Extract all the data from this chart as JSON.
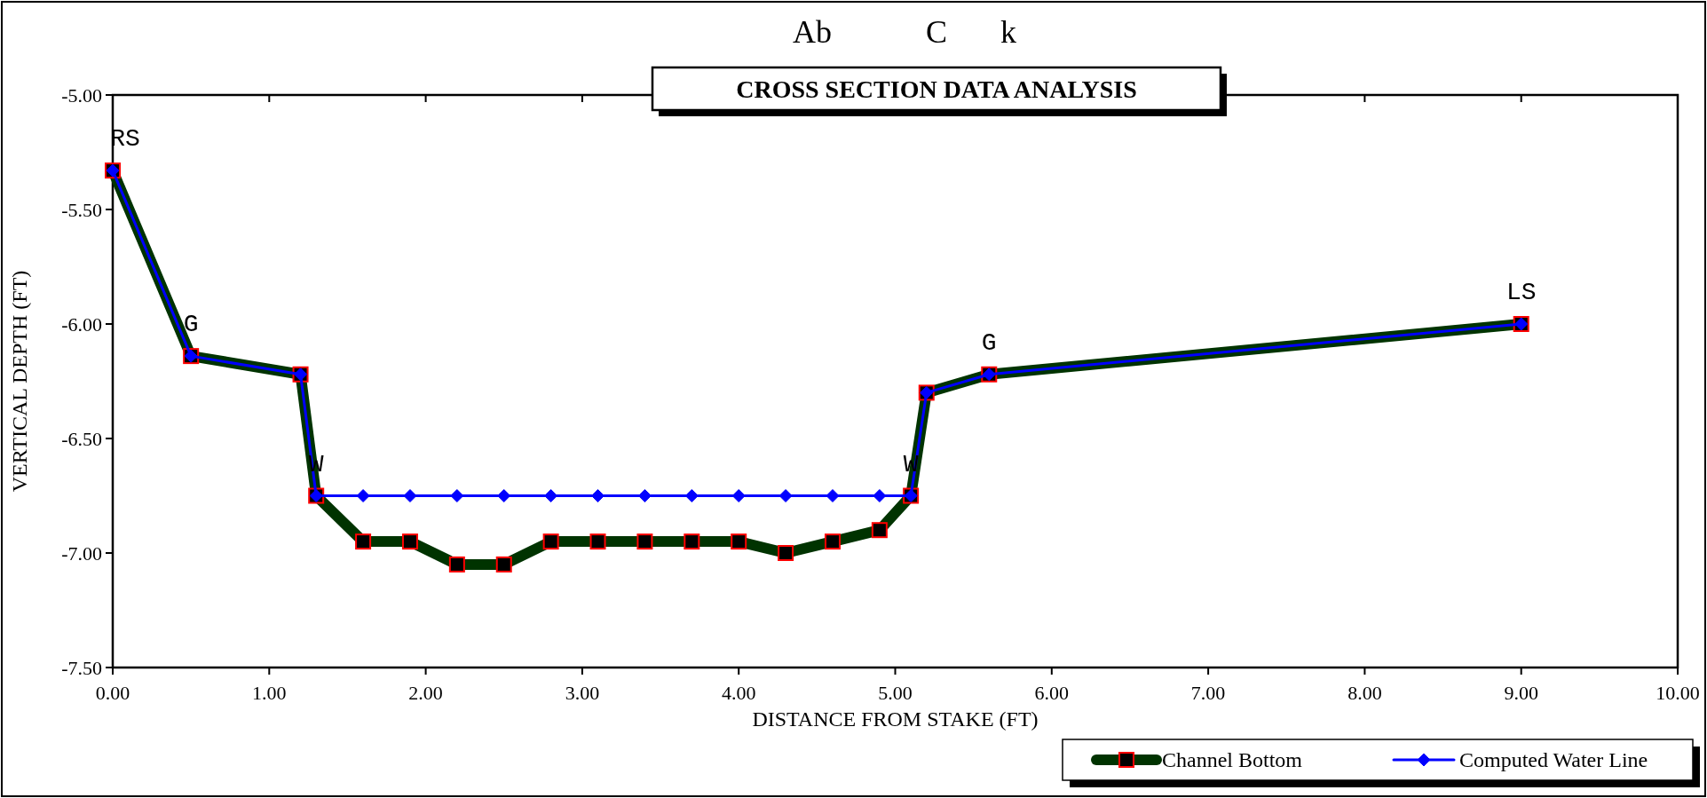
{
  "chart_data": {
    "type": "line",
    "title": "CROSS SECTION DATA ANALYSIS",
    "xlabel": "DISTANCE FROM STAKE (FT)",
    "ylabel": "VERTICAL DEPTH (FT)",
    "annotations": [
      "Ab",
      "C",
      "k",
      {
        "text": "RS",
        "x": 0,
        "y": -5.33
      },
      {
        "text": "G",
        "x": 0.5,
        "y": -6.14
      },
      {
        "text": "W",
        "x": 1.3,
        "y": -6.75
      },
      {
        "text": "W",
        "x": 5.1,
        "y": -6.75
      },
      {
        "text": "G",
        "x": 5.6,
        "y": -6.22
      },
      {
        "text": "LS",
        "x": 9.0,
        "y": -6.0
      }
    ],
    "x": [
      0,
      0.5,
      1.2,
      1.3,
      1.6,
      1.9,
      2.2,
      2.5,
      2.8,
      3.1,
      3.4,
      3.7,
      4.0,
      4.3,
      4.6,
      4.9,
      5.1,
      5.2,
      5.6,
      9.0
    ],
    "series": [
      {
        "name": "Channel Bottom",
        "color": "#003300",
        "marker": "square",
        "values": [
          -5.33,
          -6.14,
          -6.22,
          -6.75,
          -6.95,
          -6.95,
          -7.05,
          -7.05,
          -6.95,
          -6.95,
          -6.95,
          -6.95,
          -6.95,
          -7.0,
          -6.95,
          -6.9,
          -6.75,
          -6.3,
          -6.22,
          -6.0
        ]
      },
      {
        "name": "Computed Water Line",
        "color": "#0000ff",
        "marker": "diamond",
        "values": [
          -5.33,
          -6.14,
          -6.22,
          -6.75,
          -6.75,
          -6.75,
          -6.75,
          -6.75,
          -6.75,
          -6.75,
          -6.75,
          -6.75,
          -6.75,
          -6.75,
          -6.75,
          -6.75,
          -6.75,
          -6.3,
          -6.22,
          -6.0
        ]
      }
    ],
    "xlim": [
      0,
      10
    ],
    "ylim": [
      -7.5,
      -5
    ],
    "xticks": [
      {
        "value": 0,
        "label": "0.00"
      },
      {
        "value": 1,
        "label": "1.00"
      },
      {
        "value": 2,
        "label": "2.00"
      },
      {
        "value": 3,
        "label": "3.00"
      },
      {
        "value": 4,
        "label": "4.00"
      },
      {
        "value": 5,
        "label": "5.00"
      },
      {
        "value": 6,
        "label": "6.00"
      },
      {
        "value": 7,
        "label": "7.00"
      },
      {
        "value": 8,
        "label": "8.00"
      },
      {
        "value": 9,
        "label": "9.00"
      },
      {
        "value": 10,
        "label": "10.00"
      }
    ],
    "yticks": [
      {
        "value": -5,
        "label": "-5.00"
      },
      {
        "value": -5.5,
        "label": "-5.50"
      },
      {
        "value": -6,
        "label": "-6.00"
      },
      {
        "value": -6.5,
        "label": "-6.50"
      },
      {
        "value": -7,
        "label": "-7.00"
      },
      {
        "value": -7.5,
        "label": "-7.50"
      }
    ],
    "legend": "bottom right",
    "grid": false
  }
}
